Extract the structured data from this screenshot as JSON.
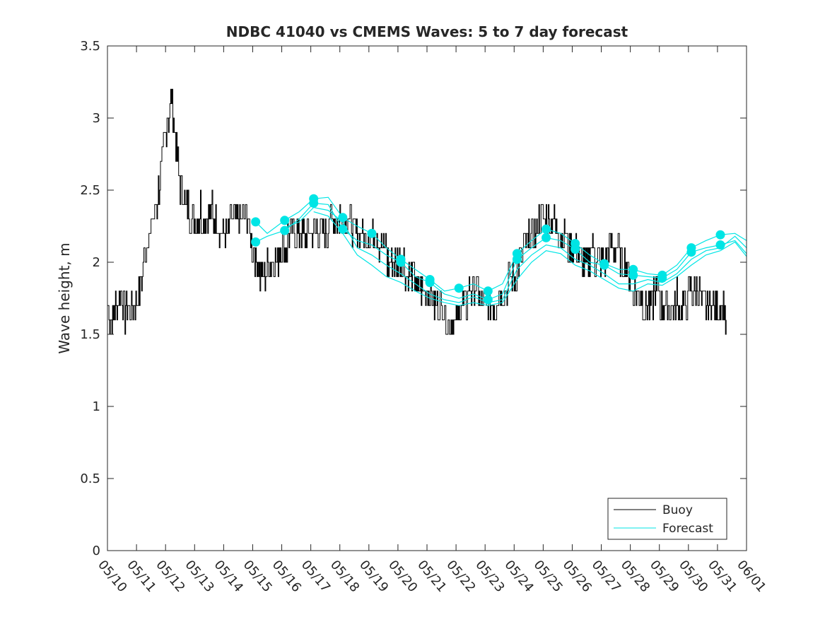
{
  "chart_data": {
    "type": "line",
    "title": "NDBC 41040 vs CMEMS Waves: 5 to 7 day forecast",
    "xlabel": "",
    "ylabel": "Wave height, m",
    "x_range": [
      "05/10",
      "06/01"
    ],
    "ylim": [
      0,
      3.5
    ],
    "y_ticks": [
      "0",
      "0.5",
      "1",
      "1.5",
      "2",
      "2.5",
      "3",
      "3.5"
    ],
    "x_ticks": [
      "05/10",
      "05/11",
      "05/12",
      "05/13",
      "05/14",
      "05/15",
      "05/16",
      "05/17",
      "05/18",
      "05/19",
      "05/20",
      "05/21",
      "05/22",
      "05/23",
      "05/24",
      "05/25",
      "05/26",
      "05/27",
      "05/28",
      "05/29",
      "05/30",
      "05/31",
      "06/01"
    ],
    "grid": false,
    "legend_position": "bottom-right",
    "colors": {
      "buoy": "#000000",
      "forecast": "#00e5e5",
      "axis": "#262626"
    },
    "series": [
      {
        "name": "Buoy",
        "description_points": [
          [
            0.0,
            1.7
          ],
          [
            0.15,
            1.6
          ],
          [
            0.3,
            1.7
          ],
          [
            0.45,
            1.8
          ],
          [
            0.6,
            1.65
          ],
          [
            0.8,
            1.7
          ],
          [
            1.0,
            1.7
          ],
          [
            1.1,
            1.8
          ],
          [
            1.2,
            1.9
          ],
          [
            1.3,
            2.1
          ],
          [
            1.45,
            2.2
          ],
          [
            1.6,
            2.3
          ],
          [
            1.75,
            2.5
          ],
          [
            1.9,
            2.7
          ],
          [
            2.0,
            2.9
          ],
          [
            2.1,
            3.0
          ],
          [
            2.2,
            3.15
          ],
          [
            2.3,
            2.9
          ],
          [
            2.4,
            2.7
          ],
          [
            2.5,
            2.55
          ],
          [
            2.65,
            2.45
          ],
          [
            2.8,
            2.35
          ],
          [
            3.0,
            2.3
          ],
          [
            3.2,
            2.35
          ],
          [
            3.4,
            2.3
          ],
          [
            3.6,
            2.35
          ],
          [
            3.8,
            2.25
          ],
          [
            4.0,
            2.2
          ],
          [
            4.2,
            2.25
          ],
          [
            4.4,
            2.3
          ],
          [
            4.6,
            2.3
          ],
          [
            4.8,
            2.3
          ],
          [
            5.0,
            2.1
          ],
          [
            5.15,
            2.0
          ],
          [
            5.3,
            1.9
          ],
          [
            5.5,
            1.95
          ],
          [
            5.7,
            2.0
          ],
          [
            5.9,
            2.05
          ],
          [
            6.0,
            2.1
          ],
          [
            6.2,
            2.15
          ],
          [
            6.4,
            2.2
          ],
          [
            6.6,
            2.2
          ],
          [
            6.8,
            2.15
          ],
          [
            7.0,
            2.2
          ],
          [
            7.2,
            2.25
          ],
          [
            7.4,
            2.2
          ],
          [
            7.6,
            2.25
          ],
          [
            7.8,
            2.3
          ],
          [
            8.0,
            2.35
          ],
          [
            8.2,
            2.3
          ],
          [
            8.4,
            2.25
          ],
          [
            8.6,
            2.2
          ],
          [
            8.8,
            2.15
          ],
          [
            9.0,
            2.15
          ],
          [
            9.2,
            2.2
          ],
          [
            9.4,
            2.1
          ],
          [
            9.6,
            2.05
          ],
          [
            9.8,
            2.0
          ],
          [
            10.0,
            2.0
          ],
          [
            10.2,
            1.95
          ],
          [
            10.4,
            1.9
          ],
          [
            10.6,
            1.85
          ],
          [
            10.8,
            1.8
          ],
          [
            11.0,
            1.8
          ],
          [
            11.2,
            1.75
          ],
          [
            11.4,
            1.7
          ],
          [
            11.6,
            1.65
          ],
          [
            11.8,
            1.6
          ],
          [
            12.0,
            1.6
          ],
          [
            12.2,
            1.7
          ],
          [
            12.4,
            1.75
          ],
          [
            12.6,
            1.8
          ],
          [
            12.8,
            1.75
          ],
          [
            13.0,
            1.7
          ],
          [
            13.2,
            1.7
          ],
          [
            13.4,
            1.75
          ],
          [
            13.6,
            1.8
          ],
          [
            13.8,
            1.85
          ],
          [
            14.0,
            1.9
          ],
          [
            14.2,
            2.0
          ],
          [
            14.4,
            2.1
          ],
          [
            14.6,
            2.2
          ],
          [
            14.8,
            2.25
          ],
          [
            15.0,
            2.3
          ],
          [
            15.2,
            2.3
          ],
          [
            15.4,
            2.25
          ],
          [
            15.6,
            2.2
          ],
          [
            15.8,
            2.15
          ],
          [
            16.0,
            2.1
          ],
          [
            16.2,
            2.05
          ],
          [
            16.4,
            2.0
          ],
          [
            16.6,
            2.05
          ],
          [
            16.8,
            2.05
          ],
          [
            17.0,
            2.0
          ],
          [
            17.2,
            2.05
          ],
          [
            17.4,
            2.1
          ],
          [
            17.6,
            2.05
          ],
          [
            17.8,
            2.0
          ],
          [
            18.0,
            1.85
          ],
          [
            18.2,
            1.75
          ],
          [
            18.4,
            1.75
          ],
          [
            18.6,
            1.7
          ],
          [
            18.8,
            1.75
          ],
          [
            19.0,
            1.75
          ],
          [
            19.2,
            1.7
          ],
          [
            19.4,
            1.7
          ],
          [
            19.6,
            1.75
          ],
          [
            19.8,
            1.7
          ],
          [
            20.0,
            1.75
          ],
          [
            20.2,
            1.8
          ],
          [
            20.4,
            1.75
          ],
          [
            20.6,
            1.7
          ],
          [
            20.8,
            1.75
          ],
          [
            21.0,
            1.7
          ],
          [
            21.2,
            1.7
          ],
          [
            21.3,
            1.6
          ]
        ]
      },
      {
        "name": "Forecast",
        "markers": [
          [
            5.1,
            2.28
          ],
          [
            5.1,
            2.14
          ],
          [
            6.1,
            2.29
          ],
          [
            6.1,
            2.22
          ],
          [
            7.1,
            2.44
          ],
          [
            7.1,
            2.41
          ],
          [
            8.1,
            2.31
          ],
          [
            8.1,
            2.23
          ],
          [
            9.1,
            2.2
          ],
          [
            10.1,
            2.02
          ],
          [
            10.1,
            2.0
          ],
          [
            11.1,
            1.88
          ],
          [
            11.1,
            1.86
          ],
          [
            12.1,
            1.82
          ],
          [
            13.1,
            1.8
          ],
          [
            13.1,
            1.74
          ],
          [
            14.1,
            2.06
          ],
          [
            14.1,
            2.02
          ],
          [
            15.1,
            2.23
          ],
          [
            15.1,
            2.17
          ],
          [
            16.1,
            2.13
          ],
          [
            16.1,
            2.09
          ],
          [
            17.1,
            1.99
          ],
          [
            17.1,
            1.98
          ],
          [
            18.1,
            1.95
          ],
          [
            18.1,
            1.91
          ],
          [
            19.1,
            1.91
          ],
          [
            19.1,
            1.89
          ],
          [
            20.1,
            2.1
          ],
          [
            20.1,
            2.07
          ],
          [
            21.1,
            2.19
          ],
          [
            21.1,
            2.12
          ]
        ],
        "members": [
          [
            [
              5.1,
              2.28
            ],
            [
              5.5,
              2.2
            ],
            [
              6.1,
              2.29
            ],
            [
              6.6,
              2.35
            ],
            [
              7.1,
              2.44
            ],
            [
              7.6,
              2.45
            ],
            [
              8.1,
              2.31
            ],
            [
              8.6,
              2.25
            ],
            [
              9.1,
              2.2
            ],
            [
              9.6,
              2.1
            ],
            [
              10.1,
              2.02
            ],
            [
              10.6,
              1.95
            ],
            [
              11.1,
              1.88
            ],
            [
              11.6,
              1.8
            ],
            [
              12.1,
              1.82
            ],
            [
              12.6,
              1.85
            ],
            [
              13.1,
              1.8
            ],
            [
              13.6,
              1.85
            ],
            [
              14.1,
              2.06
            ],
            [
              14.6,
              2.15
            ],
            [
              15.1,
              2.23
            ],
            [
              15.6,
              2.2
            ],
            [
              16.1,
              2.13
            ],
            [
              16.6,
              2.05
            ],
            [
              17.1,
              1.99
            ],
            [
              17.6,
              1.95
            ],
            [
              18.1,
              1.95
            ],
            [
              18.6,
              1.92
            ],
            [
              19.1,
              1.91
            ],
            [
              19.6,
              1.98
            ],
            [
              20.1,
              2.1
            ],
            [
              20.6,
              2.15
            ],
            [
              21.1,
              2.19
            ],
            [
              21.6,
              2.2
            ],
            [
              22.0,
              2.15
            ]
          ],
          [
            [
              5.1,
              2.14
            ],
            [
              5.5,
              2.18
            ],
            [
              6.1,
              2.22
            ],
            [
              6.6,
              2.3
            ],
            [
              7.1,
              2.41
            ],
            [
              7.6,
              2.4
            ],
            [
              8.1,
              2.23
            ],
            [
              8.6,
              2.15
            ],
            [
              9.1,
              2.12
            ],
            [
              9.6,
              2.05
            ],
            [
              10.1,
              2.0
            ],
            [
              10.6,
              1.9
            ],
            [
              11.1,
              1.86
            ],
            [
              11.6,
              1.78
            ],
            [
              12.1,
              1.75
            ],
            [
              12.6,
              1.78
            ],
            [
              13.1,
              1.74
            ],
            [
              13.6,
              1.78
            ],
            [
              14.1,
              2.02
            ],
            [
              14.6,
              2.1
            ],
            [
              15.1,
              2.17
            ],
            [
              15.6,
              2.15
            ],
            [
              16.1,
              2.09
            ],
            [
              16.6,
              2.0
            ],
            [
              17.1,
              1.98
            ],
            [
              17.6,
              1.92
            ],
            [
              18.1,
              1.91
            ],
            [
              18.6,
              1.9
            ],
            [
              19.1,
              1.89
            ],
            [
              19.6,
              1.95
            ],
            [
              20.1,
              2.07
            ],
            [
              20.6,
              2.1
            ],
            [
              21.1,
              2.12
            ],
            [
              21.6,
              2.15
            ],
            [
              22.0,
              2.06
            ]
          ],
          [
            [
              6.1,
              2.24
            ],
            [
              6.6,
              2.28
            ],
            [
              7.1,
              2.38
            ],
            [
              7.6,
              2.36
            ],
            [
              8.1,
              2.28
            ],
            [
              8.6,
              2.1
            ],
            [
              9.1,
              2.05
            ],
            [
              9.6,
              1.98
            ],
            [
              10.1,
              1.92
            ],
            [
              10.6,
              1.85
            ],
            [
              11.1,
              1.78
            ],
            [
              11.6,
              1.74
            ],
            [
              12.1,
              1.72
            ],
            [
              12.6,
              1.76
            ],
            [
              13.1,
              1.72
            ],
            [
              13.6,
              1.74
            ],
            [
              14.1,
              1.95
            ],
            [
              14.6,
              2.05
            ],
            [
              15.1,
              2.12
            ],
            [
              15.6,
              2.1
            ],
            [
              16.1,
              2.02
            ],
            [
              16.6,
              1.98
            ],
            [
              17.1,
              1.92
            ],
            [
              17.6,
              1.85
            ],
            [
              18.1,
              1.85
            ],
            [
              18.6,
              1.88
            ],
            [
              19.1,
              1.86
            ],
            [
              19.6,
              1.92
            ],
            [
              20.1,
              2.02
            ],
            [
              20.6,
              2.08
            ],
            [
              21.1,
              2.1
            ],
            [
              21.6,
              2.18
            ],
            [
              22.0,
              2.1
            ]
          ],
          [
            [
              7.1,
              2.35
            ],
            [
              7.6,
              2.32
            ],
            [
              8.1,
              2.2
            ],
            [
              8.6,
              2.05
            ],
            [
              9.1,
              1.98
            ],
            [
              9.6,
              1.9
            ],
            [
              10.1,
              1.86
            ],
            [
              10.6,
              1.8
            ],
            [
              11.1,
              1.75
            ],
            [
              11.6,
              1.72
            ],
            [
              12.1,
              1.7
            ],
            [
              12.6,
              1.72
            ],
            [
              13.1,
              1.7
            ],
            [
              13.6,
              1.72
            ],
            [
              14.1,
              1.88
            ],
            [
              14.6,
              2.0
            ],
            [
              15.1,
              2.08
            ],
            [
              15.6,
              2.06
            ],
            [
              16.1,
              1.98
            ],
            [
              16.6,
              1.94
            ],
            [
              17.1,
              1.88
            ],
            [
              17.6,
              1.82
            ],
            [
              18.1,
              1.8
            ],
            [
              18.6,
              1.85
            ],
            [
              19.1,
              1.84
            ],
            [
              19.6,
              1.9
            ],
            [
              20.1,
              1.98
            ],
            [
              20.6,
              2.05
            ],
            [
              21.1,
              2.08
            ],
            [
              21.6,
              2.14
            ],
            [
              22.0,
              2.04
            ]
          ]
        ]
      }
    ]
  }
}
